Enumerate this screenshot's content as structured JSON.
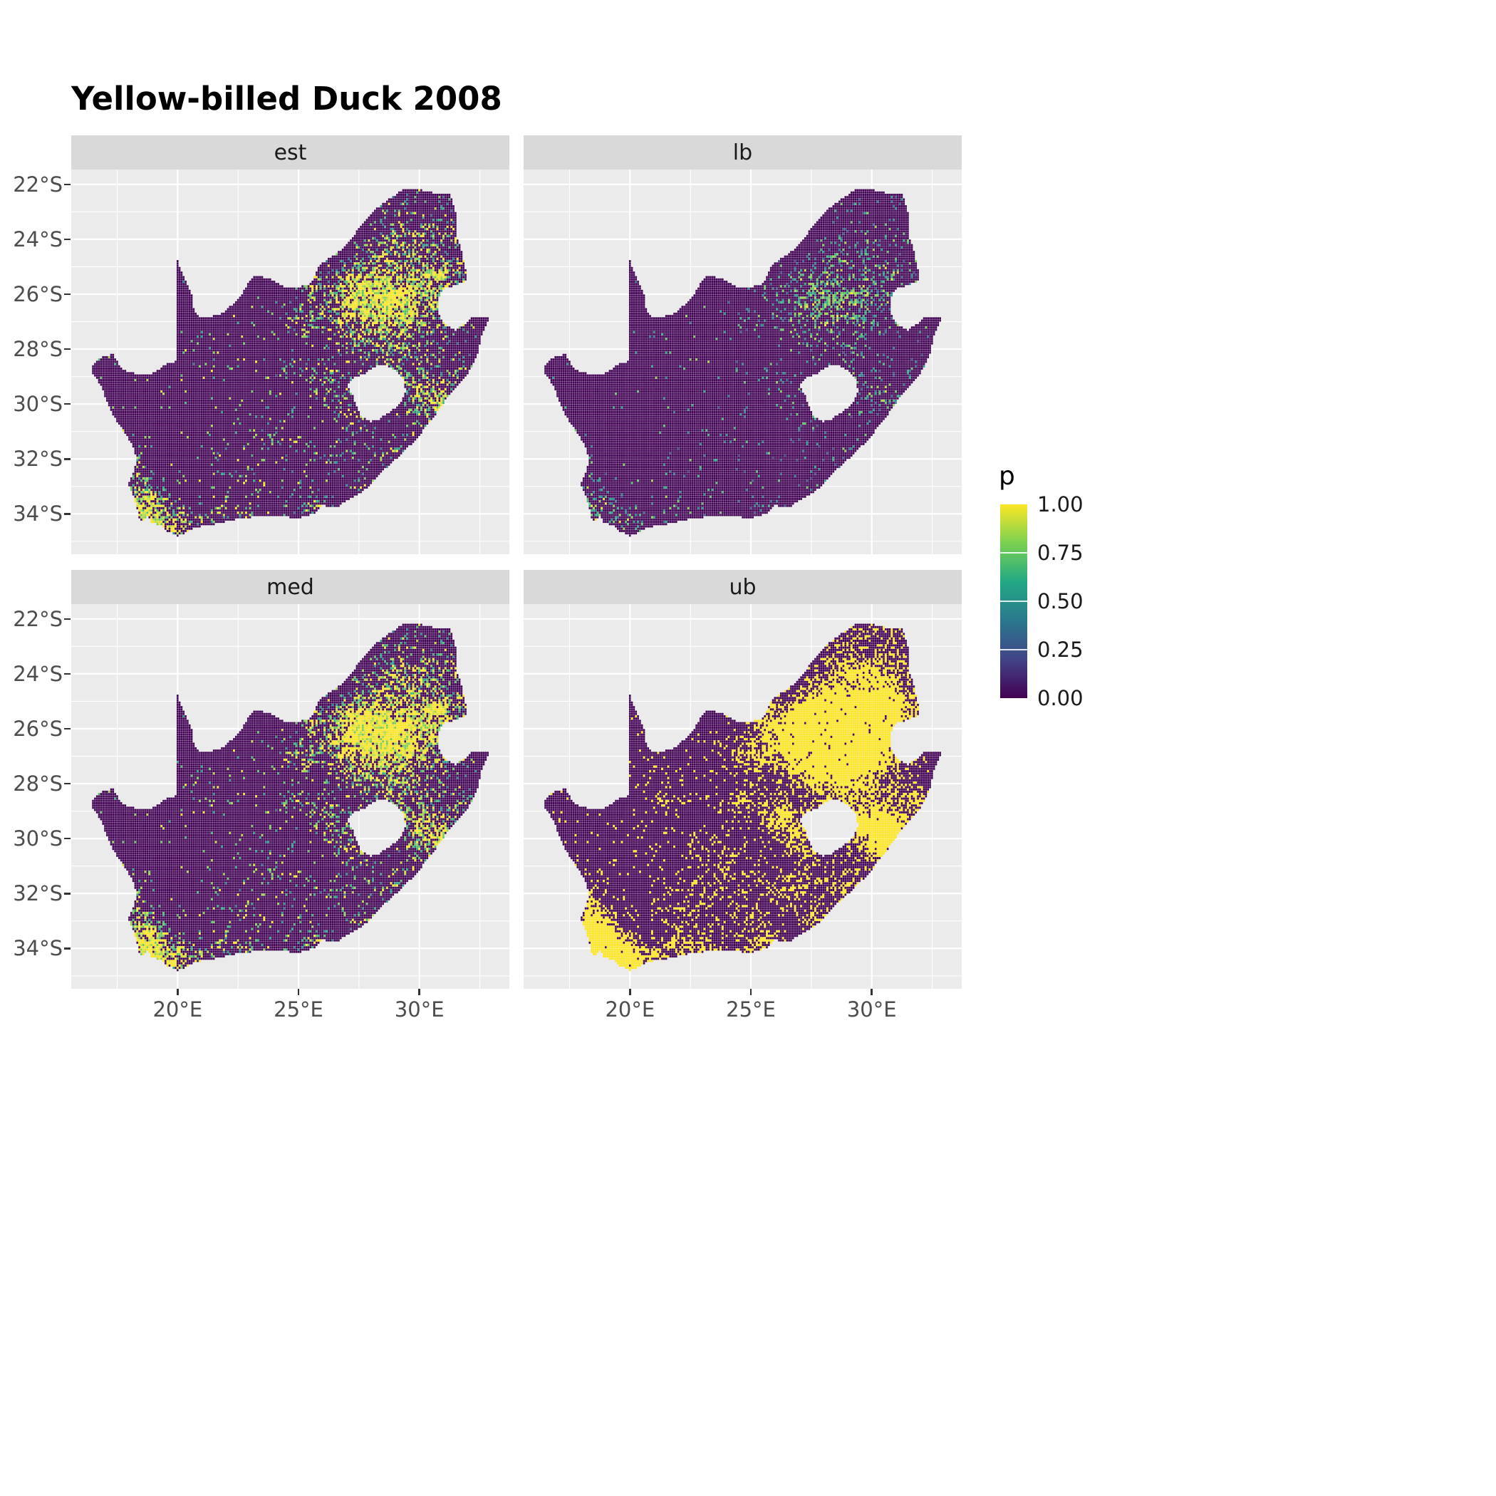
{
  "title": "Yellow-billed Duck 2008",
  "facets": [
    {
      "key": "est",
      "label": "est"
    },
    {
      "key": "lb",
      "label": "lb"
    },
    {
      "key": "med",
      "label": "med"
    },
    {
      "key": "ub",
      "label": "ub"
    }
  ],
  "axes": {
    "x": {
      "tick_labels": [
        "20°E",
        "25°E",
        "30°E"
      ],
      "tick_values": [
        20,
        25,
        30
      ],
      "minor_values": [
        17.5,
        22.5,
        27.5,
        32.5
      ],
      "domain": [
        15.6,
        33.72
      ]
    },
    "y": {
      "tick_labels": [
        "22°S",
        "24°S",
        "26°S",
        "28°S",
        "30°S",
        "32°S",
        "34°S"
      ],
      "tick_values": [
        -22,
        -24,
        -26,
        -28,
        -30,
        -32,
        -34
      ],
      "minor_values": [
        -23,
        -25,
        -27,
        -29,
        -31,
        -33,
        -35
      ],
      "domain": [
        -35.47,
        -21.46
      ]
    }
  },
  "legend": {
    "title": "p",
    "labels": [
      "1.00",
      "0.75",
      "0.50",
      "0.25",
      "0.00"
    ],
    "label_values": [
      1.0,
      0.75,
      0.5,
      0.25,
      0.0
    ],
    "tick_values": [
      0.25,
      0.5,
      0.75
    ]
  },
  "colors": {
    "background": "#FFFFFF",
    "panel_bg": "#EBEBEB",
    "strip_bg": "#D9D9D9",
    "strip_text": "#1A1A1A",
    "grid": "#FFFFFF",
    "axis_text": "#4D4D4D",
    "tick": "#333333",
    "title_text": "#000000",
    "viridis": [
      [
        0,
        "#440154"
      ],
      [
        0.2,
        "#414487"
      ],
      [
        0.4,
        "#2A788E"
      ],
      [
        0.6,
        "#22A884"
      ],
      [
        0.8,
        "#7AD151"
      ],
      [
        1,
        "#FDE725"
      ]
    ]
  },
  "chart_data": {
    "type": "heatmap",
    "title": "Yellow-billed Duck 2008",
    "subtitle": "",
    "facet_labels": [
      "est",
      "lb",
      "med",
      "ub"
    ],
    "variable": "p",
    "value_range": [
      0,
      1
    ],
    "xlabel": "",
    "ylabel": "",
    "x_ticks_deg_east": [
      20,
      25,
      30
    ],
    "y_ticks_deg_south": [
      22,
      24,
      26,
      28,
      30,
      32,
      34
    ],
    "legend_breaks": [
      0.0,
      0.25,
      0.5,
      0.75,
      1.0
    ],
    "legend_position": "right",
    "grid": "major-white-on-gray",
    "region": "South Africa occurrence-probability raster, quarter-degree-style cells; dark purple = p near 0, yellow = p near 1",
    "grid_resolution_deg": 0.0833,
    "map_outline": [
      [
        16.45,
        -28.6
      ],
      [
        16.9,
        -28.25
      ],
      [
        17.35,
        -28.2
      ],
      [
        17.7,
        -28.75
      ],
      [
        18.25,
        -28.9
      ],
      [
        19.0,
        -28.88
      ],
      [
        19.55,
        -28.55
      ],
      [
        19.99,
        -28.42
      ],
      [
        19.99,
        -24.77
      ],
      [
        20.35,
        -25.55
      ],
      [
        20.6,
        -26.0
      ],
      [
        20.65,
        -26.5
      ],
      [
        20.85,
        -26.8
      ],
      [
        21.3,
        -26.86
      ],
      [
        21.9,
        -26.67
      ],
      [
        22.3,
        -26.35
      ],
      [
        22.65,
        -26.05
      ],
      [
        22.9,
        -25.6
      ],
      [
        23.25,
        -25.3
      ],
      [
        23.85,
        -25.45
      ],
      [
        24.4,
        -25.73
      ],
      [
        25.0,
        -25.75
      ],
      [
        25.55,
        -25.6
      ],
      [
        25.9,
        -24.9
      ],
      [
        26.4,
        -24.63
      ],
      [
        26.9,
        -24.3
      ],
      [
        27.2,
        -23.95
      ],
      [
        27.6,
        -23.5
      ],
      [
        28.2,
        -22.9
      ],
      [
        28.9,
        -22.45
      ],
      [
        29.4,
        -22.15
      ],
      [
        30.0,
        -22.2
      ],
      [
        30.5,
        -22.3
      ],
      [
        31.0,
        -22.3
      ],
      [
        31.3,
        -22.4
      ],
      [
        31.55,
        -23.2
      ],
      [
        31.55,
        -23.9
      ],
      [
        31.75,
        -24.4
      ],
      [
        31.9,
        -25.0
      ],
      [
        31.99,
        -25.5
      ],
      [
        31.4,
        -25.72
      ],
      [
        31.0,
        -25.8
      ],
      [
        30.8,
        -26.15
      ],
      [
        30.8,
        -26.7
      ],
      [
        31.05,
        -27.1
      ],
      [
        31.5,
        -27.3
      ],
      [
        31.97,
        -27.05
      ],
      [
        32.13,
        -26.85
      ],
      [
        32.89,
        -26.86
      ],
      [
        32.55,
        -27.6
      ],
      [
        32.4,
        -28.2
      ],
      [
        32.15,
        -28.7
      ],
      [
        31.75,
        -29.2
      ],
      [
        31.25,
        -29.65
      ],
      [
        30.9,
        -30.1
      ],
      [
        30.4,
        -30.7
      ],
      [
        29.9,
        -31.25
      ],
      [
        29.3,
        -31.8
      ],
      [
        28.6,
        -32.35
      ],
      [
        27.95,
        -33.0
      ],
      [
        27.35,
        -33.35
      ],
      [
        26.6,
        -33.75
      ],
      [
        25.95,
        -33.7
      ],
      [
        25.65,
        -34.0
      ],
      [
        25.0,
        -34.15
      ],
      [
        24.2,
        -34.1
      ],
      [
        23.4,
        -34.1
      ],
      [
        22.8,
        -34.15
      ],
      [
        22.15,
        -34.25
      ],
      [
        21.4,
        -34.4
      ],
      [
        20.75,
        -34.5
      ],
      [
        20.0,
        -34.82
      ],
      [
        19.55,
        -34.62
      ],
      [
        19.3,
        -34.42
      ],
      [
        18.95,
        -34.35
      ],
      [
        18.8,
        -34.1
      ],
      [
        18.45,
        -34.3
      ],
      [
        18.35,
        -33.9
      ],
      [
        18.2,
        -33.4
      ],
      [
        17.95,
        -32.95
      ],
      [
        18.15,
        -32.6
      ],
      [
        18.3,
        -32.1
      ],
      [
        18.2,
        -31.6
      ],
      [
        17.85,
        -31.1
      ],
      [
        17.4,
        -30.5
      ],
      [
        17.1,
        -29.95
      ],
      [
        16.85,
        -29.35
      ],
      [
        16.5,
        -28.9
      ]
    ],
    "lesotho_hole": [
      [
        27.75,
        -28.9
      ],
      [
        28.1,
        -28.65
      ],
      [
        28.6,
        -28.57
      ],
      [
        29.1,
        -28.85
      ],
      [
        29.35,
        -29.15
      ],
      [
        29.45,
        -29.55
      ],
      [
        29.25,
        -29.95
      ],
      [
        28.85,
        -30.25
      ],
      [
        28.35,
        -30.55
      ],
      [
        28.0,
        -30.65
      ],
      [
        27.65,
        -30.5
      ],
      [
        27.4,
        -30.1
      ],
      [
        27.25,
        -29.7
      ],
      [
        27.0,
        -29.3
      ],
      [
        27.3,
        -29.05
      ]
    ],
    "hotspots": [
      [
        28.05,
        -26.15,
        0.75,
        0.6,
        1.0
      ],
      [
        28.9,
        -25.7,
        1.5,
        1.0,
        0.4
      ],
      [
        27.1,
        -25.7,
        0.8,
        0.5,
        0.35
      ],
      [
        26.7,
        -26.8,
        1.0,
        0.7,
        0.4
      ],
      [
        29.6,
        -26.3,
        0.9,
        0.8,
        0.4
      ],
      [
        30.2,
        -25.4,
        0.7,
        0.6,
        0.3
      ],
      [
        29.3,
        -23.9,
        0.6,
        0.4,
        0.3
      ],
      [
        30.1,
        -23.9,
        0.5,
        0.4,
        0.25
      ],
      [
        28.4,
        -24.7,
        0.8,
        0.6,
        0.25
      ],
      [
        31.1,
        -25.4,
        0.6,
        0.7,
        0.2
      ],
      [
        30.9,
        -26.9,
        0.6,
        0.5,
        0.3
      ],
      [
        30.8,
        -25.1,
        0.5,
        0.5,
        0.3
      ],
      [
        31.1,
        -23.3,
        0.7,
        0.6,
        0.2
      ],
      [
        29.0,
        -22.8,
        0.6,
        0.5,
        0.18
      ],
      [
        30.3,
        -29.6,
        0.8,
        0.7,
        0.45
      ],
      [
        31.0,
        -29.9,
        0.4,
        0.4,
        0.4
      ],
      [
        29.6,
        -29.3,
        0.6,
        0.5,
        0.35
      ],
      [
        29.9,
        -27.8,
        0.5,
        0.45,
        0.3
      ],
      [
        28.35,
        -28.25,
        0.8,
        0.5,
        0.35
      ],
      [
        26.2,
        -29.12,
        0.45,
        0.4,
        0.5
      ],
      [
        24.75,
        -28.75,
        0.4,
        0.35,
        0.3
      ],
      [
        25.6,
        -25.9,
        0.45,
        0.4,
        0.3
      ],
      [
        24.7,
        -26.95,
        0.55,
        0.45,
        0.22
      ],
      [
        18.75,
        -33.85,
        0.65,
        0.55,
        1.0
      ],
      [
        19.3,
        -34.4,
        0.7,
        0.35,
        0.6
      ],
      [
        18.45,
        -32.9,
        0.45,
        0.65,
        0.4
      ],
      [
        20.45,
        -34.4,
        0.6,
        0.3,
        0.35
      ],
      [
        22.4,
        -33.95,
        1.0,
        0.3,
        0.3
      ],
      [
        25.55,
        -33.85,
        0.55,
        0.4,
        0.35
      ],
      [
        27.9,
        -33.0,
        0.45,
        0.4,
        0.28
      ],
      [
        26.9,
        -31.9,
        0.55,
        0.5,
        0.2
      ],
      [
        28.75,
        -31.55,
        0.55,
        0.45,
        0.22
      ],
      [
        24.6,
        -32.3,
        1.1,
        0.8,
        0.12
      ],
      [
        23.6,
        -30.6,
        0.8,
        0.7,
        0.1
      ],
      [
        21.25,
        -28.45,
        0.45,
        0.3,
        0.2
      ],
      [
        30.6,
        -30.6,
        0.5,
        0.5,
        0.3
      ],
      [
        31.6,
        -28.7,
        0.5,
        0.5,
        0.25
      ],
      [
        22.2,
        -32.35,
        0.7,
        0.5,
        0.15
      ],
      [
        27.4,
        -30.6,
        0.45,
        0.45,
        0.2
      ],
      [
        26.8,
        -29.8,
        0.5,
        0.45,
        0.25
      ],
      [
        29.1,
        -26.9,
        0.7,
        0.6,
        0.35
      ],
      [
        27.6,
        -27.3,
        0.7,
        0.5,
        0.3
      ]
    ],
    "facet_params": {
      "est": {
        "k": 0.62,
        "amp": 1.0,
        "iso": 0.012,
        "vmin": 0.25,
        "vs": 0.42,
        "vn": 0.75,
        "dotmin": 0.5
      },
      "lb": {
        "k": 0.36,
        "amp": 0.75,
        "iso": 0.006,
        "vmin": 0.15,
        "vs": 0.3,
        "vn": 0.62,
        "vcap": 0.85,
        "vcapBreak": 0.88,
        "dotmin": 0.35
      },
      "med": {
        "k": 0.68,
        "amp": 1.08,
        "iso": 0.014,
        "vmin": 0.3,
        "vs": 0.45,
        "vn": 0.72,
        "dotmin": 0.5
      },
      "ub": {
        "k": 0.95,
        "amp": 1.55,
        "iso": 0.04,
        "vmin": 0.55,
        "vs": 0.3,
        "vn": 0.5,
        "solid": 0.72,
        "dot1": true,
        "dotmin": 0.7
      }
    }
  }
}
